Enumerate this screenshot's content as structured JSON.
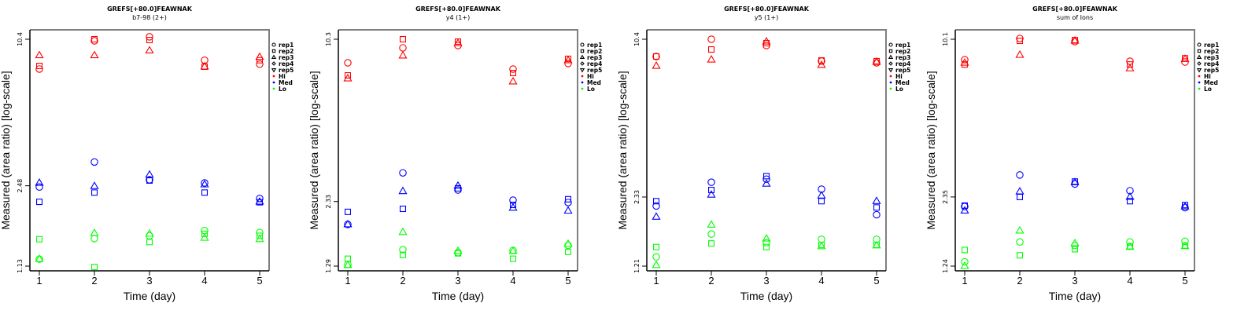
{
  "chart_data": [
    {
      "type": "scatter",
      "title": "GREFS[+80.0]FEAWNAK",
      "subtitle": "b7-98 (2+)",
      "xlabel": "Time (day)",
      "ylabel": "Measured (area ratio) [log-scale]",
      "y_scale": "log",
      "x_ticks": [
        1,
        2,
        3,
        4,
        5
      ],
      "y_ticks": [
        {
          "value": 10.4,
          "label": "10.4"
        },
        {
          "value": 2.48,
          "label": "2.48"
        },
        {
          "value": 1.13,
          "label": "1.13"
        }
      ],
      "ylim": [
        1.13,
        10.4
      ],
      "grid": false,
      "legend_position": "right",
      "series": [
        {
          "name": "Hi",
          "replicate": "rep1",
          "x": [
            1,
            2,
            3,
            4,
            5
          ],
          "y": [
            7.77,
            10.24,
            10.65,
            8.47,
            8.15
          ]
        },
        {
          "name": "Hi",
          "replicate": "rep2",
          "x": [
            1,
            2,
            3,
            4,
            5
          ],
          "y": [
            8.01,
            10.4,
            10.32,
            7.95,
            8.47
          ]
        },
        {
          "name": "Hi",
          "replicate": "rep3",
          "x": [
            1,
            2,
            3,
            4,
            5
          ],
          "y": [
            8.88,
            8.88,
            9.31,
            7.95,
            8.74
          ]
        },
        {
          "name": "Med",
          "replicate": "rep1",
          "x": [
            1,
            2,
            3,
            4,
            5
          ],
          "y": [
            2.45,
            3.13,
            2.63,
            2.55,
            2.19
          ]
        },
        {
          "name": "Med",
          "replicate": "rep2",
          "x": [
            1,
            2,
            3,
            4,
            5
          ],
          "y": [
            2.12,
            2.32,
            2.61,
            2.32,
            2.11
          ]
        },
        {
          "name": "Med",
          "replicate": "rep3",
          "x": [
            1,
            2,
            3,
            4,
            5
          ],
          "y": [
            2.55,
            2.47,
            2.76,
            2.51,
            2.12
          ]
        },
        {
          "name": "Lo",
          "replicate": "rep1",
          "x": [
            1,
            2,
            3,
            4,
            5
          ],
          "y": [
            1.21,
            1.48,
            1.52,
            1.6,
            1.57
          ]
        },
        {
          "name": "Lo",
          "replicate": "rep2",
          "x": [
            1,
            2,
            3,
            4,
            5
          ],
          "y": [
            1.47,
            1.12,
            1.43,
            1.55,
            1.52
          ]
        },
        {
          "name": "Lo",
          "replicate": "rep3",
          "x": [
            1,
            2,
            3,
            4,
            5
          ],
          "y": [
            1.21,
            1.56,
            1.55,
            1.49,
            1.47
          ]
        }
      ]
    },
    {
      "type": "scatter",
      "title": "GREFS[+80.0]FEAWNAK",
      "subtitle": "y4 (1+)",
      "xlabel": "Time (day)",
      "ylabel": "Measured (area ratio) [log-scale]",
      "y_scale": "log",
      "x_ticks": [
        1,
        2,
        3,
        4,
        5
      ],
      "y_ticks": [
        {
          "value": 10.3,
          "label": "10.3"
        },
        {
          "value": 2.33,
          "label": "2.33"
        },
        {
          "value": 1.29,
          "label": "1.29"
        }
      ],
      "ylim": [
        1.29,
        10.3
      ],
      "grid": false,
      "legend_position": "right",
      "series": [
        {
          "name": "Hi",
          "replicate": "rep1",
          "x": [
            1,
            2,
            3,
            4,
            5
          ],
          "y": [
            8.3,
            9.52,
            9.72,
            7.84,
            8.25
          ]
        },
        {
          "name": "Hi",
          "replicate": "rep2",
          "x": [
            1,
            2,
            3,
            4,
            5
          ],
          "y": [
            7.4,
            10.3,
            10.08,
            7.56,
            8.61
          ]
        },
        {
          "name": "Hi",
          "replicate": "rep3",
          "x": [
            1,
            2,
            3,
            4,
            5
          ],
          "y": [
            7.19,
            8.86,
            9.93,
            6.99,
            8.49
          ]
        },
        {
          "name": "Med",
          "replicate": "rep1",
          "x": [
            1,
            2,
            3,
            4,
            5
          ],
          "y": [
            1.89,
            3.03,
            2.59,
            2.36,
            2.31
          ]
        },
        {
          "name": "Med",
          "replicate": "rep2",
          "x": [
            1,
            2,
            3,
            4,
            5
          ],
          "y": [
            2.12,
            2.18,
            2.63,
            2.26,
            2.38
          ]
        },
        {
          "name": "Med",
          "replicate": "rep3",
          "x": [
            1,
            2,
            3,
            4,
            5
          ],
          "y": [
            1.89,
            2.56,
            2.69,
            2.2,
            2.14
          ]
        },
        {
          "name": "Lo",
          "replicate": "rep1",
          "x": [
            1,
            2,
            3,
            4,
            5
          ],
          "y": [
            1.31,
            1.5,
            1.46,
            1.49,
            1.56
          ]
        },
        {
          "name": "Lo",
          "replicate": "rep2",
          "x": [
            1,
            2,
            3,
            4,
            5
          ],
          "y": [
            1.38,
            1.43,
            1.45,
            1.38,
            1.47
          ]
        },
        {
          "name": "Lo",
          "replicate": "rep3",
          "x": [
            1,
            2,
            3,
            4,
            5
          ],
          "y": [
            1.3,
            1.76,
            1.48,
            1.48,
            1.58
          ]
        }
      ]
    },
    {
      "type": "scatter",
      "title": "GREFS[+80.0]FEAWNAK",
      "subtitle": "y5 (1+)",
      "xlabel": "Time (day)",
      "ylabel": "Measured (area ratio) [log-scale]",
      "y_scale": "log",
      "x_ticks": [
        1,
        2,
        3,
        4,
        5
      ],
      "y_ticks": [
        {
          "value": 10.4,
          "label": "10.4"
        },
        {
          "value": 2.33,
          "label": "2.33"
        },
        {
          "value": 1.21,
          "label": "1.21"
        }
      ],
      "ylim": [
        1.21,
        10.4
      ],
      "grid": false,
      "legend_position": "right",
      "series": [
        {
          "name": "Hi",
          "replicate": "rep1",
          "x": [
            1,
            2,
            3,
            4,
            5
          ],
          "y": [
            8.83,
            10.4,
            9.8,
            8.45,
            8.32
          ]
        },
        {
          "name": "Hi",
          "replicate": "rep2",
          "x": [
            1,
            2,
            3,
            4,
            5
          ],
          "y": [
            8.83,
            9.44,
            10.02,
            8.51,
            8.45
          ]
        },
        {
          "name": "Hi",
          "replicate": "rep3",
          "x": [
            1,
            2,
            3,
            4,
            5
          ],
          "y": [
            8.07,
            8.57,
            10.17,
            8.14,
            8.38
          ]
        },
        {
          "name": "Med",
          "replicate": "rep1",
          "x": [
            1,
            2,
            3,
            4,
            5
          ],
          "y": [
            2.14,
            2.68,
            2.76,
            2.51,
            1.97
          ]
        },
        {
          "name": "Med",
          "replicate": "rep2",
          "x": [
            1,
            2,
            3,
            4,
            5
          ],
          "y": [
            2.24,
            2.49,
            2.84,
            2.24,
            2.11
          ]
        },
        {
          "name": "Med",
          "replicate": "rep3",
          "x": [
            1,
            2,
            3,
            4,
            5
          ],
          "y": [
            1.93,
            2.38,
            2.64,
            2.36,
            2.24
          ]
        },
        {
          "name": "Lo",
          "replicate": "rep1",
          "x": [
            1,
            2,
            3,
            4,
            5
          ],
          "y": [
            1.32,
            1.64,
            1.51,
            1.56,
            1.56
          ]
        },
        {
          "name": "Lo",
          "replicate": "rep2",
          "x": [
            1,
            2,
            3,
            4,
            5
          ],
          "y": [
            1.45,
            1.5,
            1.45,
            1.48,
            1.48
          ]
        },
        {
          "name": "Lo",
          "replicate": "rep3",
          "x": [
            1,
            2,
            3,
            4,
            5
          ],
          "y": [
            1.22,
            1.79,
            1.57,
            1.46,
            1.47
          ]
        }
      ]
    },
    {
      "type": "scatter",
      "title": "GREFS[+80.0]FEAWNAK",
      "subtitle": "sum of Ions",
      "xlabel": "Time (day)",
      "ylabel": "Measured (area ratio) [log-scale]",
      "y_scale": "log",
      "x_ticks": [
        1,
        2,
        3,
        4,
        5
      ],
      "y_ticks": [
        {
          "value": 10.1,
          "label": "10.1"
        },
        {
          "value": 2.35,
          "label": "2.35"
        },
        {
          "value": 1.24,
          "label": "1.24"
        }
      ],
      "ylim": [
        1.24,
        10.1
      ],
      "grid": false,
      "legend_position": "right",
      "series": [
        {
          "name": "Hi",
          "replicate": "rep1",
          "x": [
            1,
            2,
            3,
            4,
            5
          ],
          "y": [
            8.36,
            10.17,
            9.88,
            8.24,
            8.18
          ]
        },
        {
          "name": "Hi",
          "replicate": "rep2",
          "x": [
            1,
            2,
            3,
            4,
            5
          ],
          "y": [
            8.0,
            9.95,
            10.02,
            8.0,
            8.47
          ]
        },
        {
          "name": "Hi",
          "replicate": "rep3",
          "x": [
            1,
            2,
            3,
            4,
            5
          ],
          "y": [
            8.12,
            8.73,
            9.95,
            7.71,
            8.41
          ]
        },
        {
          "name": "Med",
          "replicate": "rep1",
          "x": [
            1,
            2,
            3,
            4,
            5
          ],
          "y": [
            2.15,
            2.88,
            2.65,
            2.49,
            2.13
          ]
        },
        {
          "name": "Med",
          "replicate": "rep2",
          "x": [
            1,
            2,
            3,
            4,
            5
          ],
          "y": [
            2.17,
            2.35,
            2.71,
            2.26,
            2.18
          ]
        },
        {
          "name": "Med",
          "replicate": "rep3",
          "x": [
            1,
            2,
            3,
            4,
            5
          ],
          "y": [
            2.07,
            2.47,
            2.69,
            2.35,
            2.15
          ]
        },
        {
          "name": "Lo",
          "replicate": "rep1",
          "x": [
            1,
            2,
            3,
            4,
            5
          ],
          "y": [
            1.29,
            1.55,
            1.5,
            1.55,
            1.56
          ]
        },
        {
          "name": "Lo",
          "replicate": "rep2",
          "x": [
            1,
            2,
            3,
            4,
            5
          ],
          "y": [
            1.44,
            1.37,
            1.45,
            1.49,
            1.5
          ]
        },
        {
          "name": "Lo",
          "replicate": "rep3",
          "x": [
            1,
            2,
            3,
            4,
            5
          ],
          "y": [
            1.24,
            1.72,
            1.53,
            1.48,
            1.49
          ]
        }
      ]
    }
  ],
  "legend": {
    "items": [
      {
        "label": "rep1",
        "symbol": "circle",
        "color": "#000000"
      },
      {
        "label": "rep2",
        "symbol": "square",
        "color": "#000000"
      },
      {
        "label": "rep3",
        "symbol": "triangle-up",
        "color": "#000000"
      },
      {
        "label": "rep4",
        "symbol": "diamond",
        "color": "#000000"
      },
      {
        "label": "rep5",
        "symbol": "triangle-down",
        "color": "#000000"
      },
      {
        "label": "Hi",
        "symbol": "dot",
        "color": "#ff0000"
      },
      {
        "label": "Med",
        "symbol": "dot",
        "color": "#0000ff"
      },
      {
        "label": "Lo",
        "symbol": "dot",
        "color": "#00ff00"
      }
    ]
  },
  "colors": {
    "Hi": "#ff0000",
    "Med": "#0000ff",
    "Lo": "#00ff00"
  },
  "symbols": {
    "rep1": "circle",
    "rep2": "square",
    "rep3": "triangle-up",
    "rep4": "diamond",
    "rep5": "triangle-down"
  }
}
